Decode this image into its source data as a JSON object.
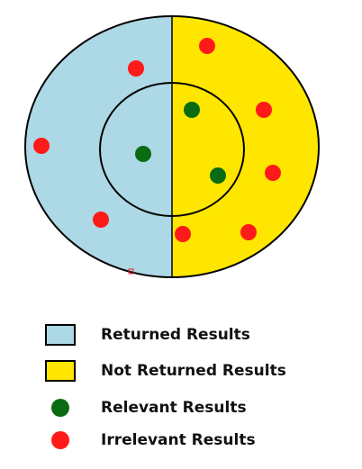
{
  "colors": {
    "returned": "#add8e6",
    "not_returned": "#ffe600",
    "relevant": "#0a6b12",
    "irrelevant": "#ff1a1a",
    "outline": "#000000"
  },
  "legend": {
    "returned_label": "Returned Results",
    "not_returned_label": "Not Returned Results",
    "relevant_label": "Relevant Results",
    "irrelevant_label": "Irrelevant Results"
  }
}
